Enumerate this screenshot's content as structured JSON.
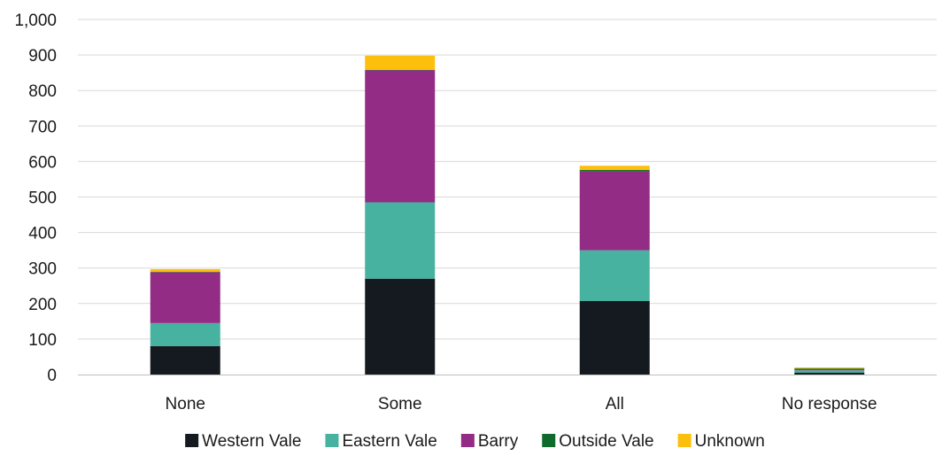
{
  "chart_data": {
    "type": "bar",
    "stacked": true,
    "title": "",
    "xlabel": "",
    "ylabel": "",
    "ylim": [
      0,
      1000
    ],
    "yticks": [
      "0",
      "100",
      "200",
      "300",
      "400",
      "500",
      "600",
      "700",
      "800",
      "900",
      "1,000"
    ],
    "ytick_values": [
      0,
      100,
      200,
      300,
      400,
      500,
      600,
      700,
      800,
      900,
      1000
    ],
    "categories": [
      "None",
      "Some",
      "All",
      "No response"
    ],
    "grid": true,
    "legend_position": "bottom",
    "series": [
      {
        "name": "Western Vale",
        "color": "#141a20",
        "values": [
          80,
          270,
          207,
          5
        ]
      },
      {
        "name": "Eastern Vale",
        "color": "#47b29f",
        "values": [
          65,
          215,
          143,
          7
        ]
      },
      {
        "name": "Barry",
        "color": "#922c84",
        "values": [
          143,
          372,
          222,
          3
        ]
      },
      {
        "name": "Outside Vale",
        "color": "#0f6b2c",
        "values": [
          1,
          1,
          4,
          2
        ]
      },
      {
        "name": "Unknown",
        "color": "#fcbf0b",
        "values": [
          8,
          40,
          12,
          3
        ]
      }
    ]
  }
}
